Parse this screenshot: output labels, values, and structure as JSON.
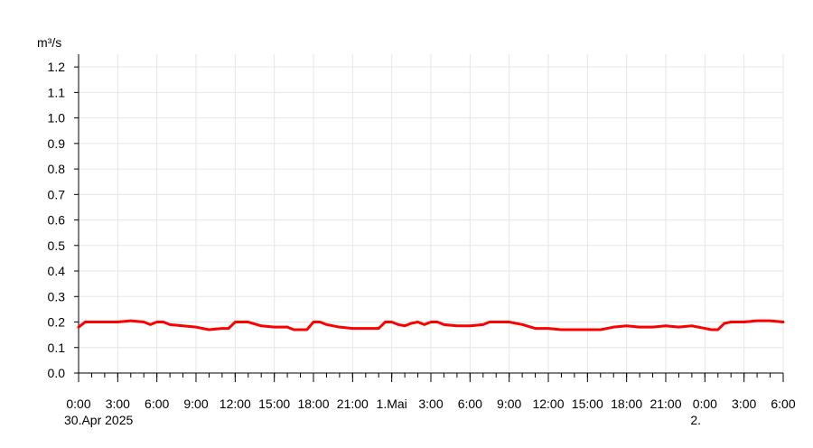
{
  "chart_data": {
    "type": "line",
    "title": "",
    "ylabel": "m³/s",
    "xlabel": "",
    "ylim": [
      0,
      1.25
    ],
    "yticks": [
      0.0,
      0.1,
      0.2,
      0.3,
      0.4,
      0.5,
      0.6,
      0.7,
      0.8,
      0.9,
      1.0,
      1.1,
      1.2
    ],
    "ytick_labels": [
      "0.0",
      "0.1",
      "0.2",
      "0.3",
      "0.4",
      "0.5",
      "0.6",
      "0.7",
      "0.8",
      "0.9",
      "1.0",
      "1.1",
      "1.2"
    ],
    "xlim": [
      "2025-04-30 00:00",
      "2025-05-02 06:00"
    ],
    "xticks": [
      {
        "time": "2025-04-30 00:00",
        "label": "0:00",
        "sublabel": "30.Apr 2025"
      },
      {
        "time": "2025-04-30 03:00",
        "label": "3:00"
      },
      {
        "time": "2025-04-30 06:00",
        "label": "6:00"
      },
      {
        "time": "2025-04-30 09:00",
        "label": "9:00"
      },
      {
        "time": "2025-04-30 12:00",
        "label": "12:00"
      },
      {
        "time": "2025-04-30 15:00",
        "label": "15:00"
      },
      {
        "time": "2025-04-30 18:00",
        "label": "18:00"
      },
      {
        "time": "2025-04-30 21:00",
        "label": "21:00"
      },
      {
        "time": "2025-05-01 00:00",
        "label": "1.Mai"
      },
      {
        "time": "2025-05-01 03:00",
        "label": "3:00"
      },
      {
        "time": "2025-05-01 06:00",
        "label": "6:00"
      },
      {
        "time": "2025-05-01 09:00",
        "label": "9:00"
      },
      {
        "time": "2025-05-01 12:00",
        "label": "12:00"
      },
      {
        "time": "2025-05-01 15:00",
        "label": "15:00"
      },
      {
        "time": "2025-05-01 18:00",
        "label": "18:00"
      },
      {
        "time": "2025-05-01 21:00",
        "label": "21:00"
      },
      {
        "time": "2025-05-02 00:00",
        "label": "0:00",
        "sublabel": "2."
      },
      {
        "time": "2025-05-02 03:00",
        "label": "3:00"
      },
      {
        "time": "2025-05-02 06:00",
        "label": "6:00"
      }
    ],
    "grid": true,
    "series": [
      {
        "color": "#ff0000",
        "points": [
          [
            "2025-04-30 00:00",
            0.18
          ],
          [
            "2025-04-30 00:30",
            0.2
          ],
          [
            "2025-04-30 01:00",
            0.2
          ],
          [
            "2025-04-30 02:00",
            0.2
          ],
          [
            "2025-04-30 03:00",
            0.2
          ],
          [
            "2025-04-30 04:00",
            0.205
          ],
          [
            "2025-04-30 05:00",
            0.2
          ],
          [
            "2025-04-30 05:30",
            0.19
          ],
          [
            "2025-04-30 06:00",
            0.2
          ],
          [
            "2025-04-30 06:30",
            0.2
          ],
          [
            "2025-04-30 07:00",
            0.19
          ],
          [
            "2025-04-30 08:00",
            0.185
          ],
          [
            "2025-04-30 09:00",
            0.18
          ],
          [
            "2025-04-30 10:00",
            0.17
          ],
          [
            "2025-04-30 11:00",
            0.175
          ],
          [
            "2025-04-30 11:30",
            0.175
          ],
          [
            "2025-04-30 12:00",
            0.2
          ],
          [
            "2025-04-30 13:00",
            0.2
          ],
          [
            "2025-04-30 14:00",
            0.185
          ],
          [
            "2025-04-30 15:00",
            0.18
          ],
          [
            "2025-04-30 16:00",
            0.18
          ],
          [
            "2025-04-30 16:30",
            0.17
          ],
          [
            "2025-04-30 17:30",
            0.17
          ],
          [
            "2025-04-30 18:00",
            0.2
          ],
          [
            "2025-04-30 18:30",
            0.2
          ],
          [
            "2025-04-30 19:00",
            0.19
          ],
          [
            "2025-04-30 20:00",
            0.18
          ],
          [
            "2025-04-30 21:00",
            0.175
          ],
          [
            "2025-04-30 22:00",
            0.175
          ],
          [
            "2025-04-30 23:00",
            0.175
          ],
          [
            "2025-04-30 23:30",
            0.2
          ],
          [
            "2025-05-01 00:00",
            0.2
          ],
          [
            "2025-05-01 00:30",
            0.19
          ],
          [
            "2025-05-01 01:00",
            0.185
          ],
          [
            "2025-05-01 01:30",
            0.195
          ],
          [
            "2025-05-01 02:00",
            0.2
          ],
          [
            "2025-05-01 02:30",
            0.19
          ],
          [
            "2025-05-01 03:00",
            0.2
          ],
          [
            "2025-05-01 03:30",
            0.2
          ],
          [
            "2025-05-01 04:00",
            0.19
          ],
          [
            "2025-05-01 05:00",
            0.185
          ],
          [
            "2025-05-01 06:00",
            0.185
          ],
          [
            "2025-05-01 07:00",
            0.19
          ],
          [
            "2025-05-01 07:30",
            0.2
          ],
          [
            "2025-05-01 08:00",
            0.2
          ],
          [
            "2025-05-01 09:00",
            0.2
          ],
          [
            "2025-05-01 09:30",
            0.195
          ],
          [
            "2025-05-01 10:00",
            0.19
          ],
          [
            "2025-05-01 11:00",
            0.175
          ],
          [
            "2025-05-01 12:00",
            0.175
          ],
          [
            "2025-05-01 13:00",
            0.17
          ],
          [
            "2025-05-01 14:00",
            0.17
          ],
          [
            "2025-05-01 15:00",
            0.17
          ],
          [
            "2025-05-01 16:00",
            0.17
          ],
          [
            "2025-05-01 17:00",
            0.18
          ],
          [
            "2025-05-01 18:00",
            0.185
          ],
          [
            "2025-05-01 19:00",
            0.18
          ],
          [
            "2025-05-01 20:00",
            0.18
          ],
          [
            "2025-05-01 21:00",
            0.185
          ],
          [
            "2025-05-01 22:00",
            0.18
          ],
          [
            "2025-05-01 23:00",
            0.185
          ],
          [
            "2025-05-02 00:00",
            0.175
          ],
          [
            "2025-05-02 00:30",
            0.17
          ],
          [
            "2025-05-02 01:00",
            0.17
          ],
          [
            "2025-05-02 01:30",
            0.195
          ],
          [
            "2025-05-02 02:00",
            0.2
          ],
          [
            "2025-05-02 03:00",
            0.2
          ],
          [
            "2025-05-02 04:00",
            0.205
          ],
          [
            "2025-05-02 05:00",
            0.205
          ],
          [
            "2025-05-02 06:00",
            0.2
          ]
        ]
      }
    ]
  }
}
